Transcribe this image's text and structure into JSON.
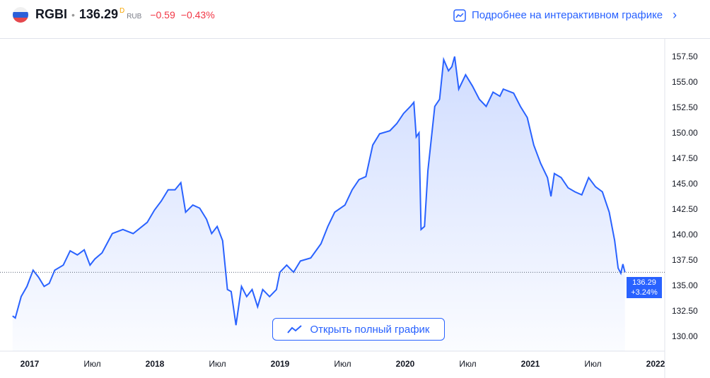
{
  "header": {
    "symbol": "RGBI",
    "separator": "•",
    "price": "136.29",
    "price_flag": "D",
    "currency": "RUB",
    "change": "−0.59",
    "change_percent": "−0.43%",
    "flag_icon": "russia-flag-icon",
    "more_link": "Подробнее на интерактивном графике"
  },
  "open_button": "Открыть полный график",
  "last_label": {
    "price": "136.29",
    "change": "+3.24%"
  },
  "colors": {
    "line": "#2962ff",
    "negative": "#f23645",
    "accent": "#2962ff"
  },
  "chart_data": {
    "type": "area",
    "x_ticks": [
      "2017",
      "Июл",
      "2018",
      "Июл",
      "2019",
      "Июл",
      "2020",
      "Июл",
      "2021",
      "Июл",
      "2022"
    ],
    "y_ticks": [
      "130.00",
      "132.50",
      "135.00",
      "137.50",
      "140.00",
      "142.50",
      "145.00",
      "147.50",
      "150.00",
      "152.50",
      "155.00",
      "157.50"
    ],
    "ylim": [
      129.4,
      159.2
    ],
    "xlim": [
      "2016-11-01",
      "2022-02-10"
    ],
    "grid": false,
    "last_value": 136.29,
    "points": [
      [
        "2016-11-12",
        132.0
      ],
      [
        "2016-11-20",
        131.8
      ],
      [
        "2016-12-07",
        133.9
      ],
      [
        "2016-12-24",
        134.9
      ],
      [
        "2017-01-11",
        136.5
      ],
      [
        "2017-01-27",
        135.8
      ],
      [
        "2017-02-12",
        134.9
      ],
      [
        "2017-02-27",
        135.2
      ],
      [
        "2017-03-15",
        136.5
      ],
      [
        "2017-04-09",
        137.0
      ],
      [
        "2017-04-29",
        138.4
      ],
      [
        "2017-05-20",
        138.0
      ],
      [
        "2017-06-09",
        138.5
      ],
      [
        "2017-06-26",
        137.0
      ],
      [
        "2017-07-10",
        137.6
      ],
      [
        "2017-07-31",
        138.2
      ],
      [
        "2017-08-30",
        140.1
      ],
      [
        "2017-09-30",
        140.5
      ],
      [
        "2017-10-30",
        140.1
      ],
      [
        "2017-12-10",
        141.2
      ],
      [
        "2017-12-31",
        142.4
      ],
      [
        "2018-01-20",
        143.3
      ],
      [
        "2018-02-09",
        144.4
      ],
      [
        "2018-03-01",
        144.4
      ],
      [
        "2018-03-18",
        145.1
      ],
      [
        "2018-04-01",
        142.2
      ],
      [
        "2018-04-22",
        142.9
      ],
      [
        "2018-05-12",
        142.6
      ],
      [
        "2018-06-01",
        141.5
      ],
      [
        "2018-06-16",
        140.1
      ],
      [
        "2018-07-02",
        140.8
      ],
      [
        "2018-07-18",
        139.4
      ],
      [
        "2018-08-01",
        134.6
      ],
      [
        "2018-08-12",
        134.4
      ],
      [
        "2018-08-26",
        131.1
      ],
      [
        "2018-09-11",
        134.9
      ],
      [
        "2018-09-26",
        133.9
      ],
      [
        "2018-10-12",
        134.6
      ],
      [
        "2018-10-28",
        132.9
      ],
      [
        "2018-11-12",
        134.6
      ],
      [
        "2018-12-02",
        133.9
      ],
      [
        "2018-12-22",
        134.6
      ],
      [
        "2019-01-01",
        136.3
      ],
      [
        "2019-01-21",
        137.0
      ],
      [
        "2019-02-10",
        136.3
      ],
      [
        "2019-03-02",
        137.4
      ],
      [
        "2019-04-01",
        137.7
      ],
      [
        "2019-05-01",
        139.1
      ],
      [
        "2019-05-21",
        140.8
      ],
      [
        "2019-06-10",
        142.2
      ],
      [
        "2019-07-10",
        142.9
      ],
      [
        "2019-07-31",
        144.4
      ],
      [
        "2019-08-20",
        145.4
      ],
      [
        "2019-09-09",
        145.7
      ],
      [
        "2019-09-29",
        148.8
      ],
      [
        "2019-10-19",
        149.9
      ],
      [
        "2019-11-18",
        150.2
      ],
      [
        "2019-12-08",
        150.9
      ],
      [
        "2019-12-28",
        151.9
      ],
      [
        "2020-01-17",
        152.6
      ],
      [
        "2020-01-27",
        153.0
      ],
      [
        "2020-02-03",
        149.6
      ],
      [
        "2020-02-11",
        150.0
      ],
      [
        "2020-02-17",
        140.5
      ],
      [
        "2020-02-27",
        140.8
      ],
      [
        "2020-03-08",
        146.3
      ],
      [
        "2020-03-28",
        152.6
      ],
      [
        "2020-04-11",
        153.3
      ],
      [
        "2020-04-23",
        157.2
      ],
      [
        "2020-05-07",
        156.1
      ],
      [
        "2020-05-17",
        156.5
      ],
      [
        "2020-05-25",
        157.5
      ],
      [
        "2020-06-06",
        154.3
      ],
      [
        "2020-06-26",
        155.7
      ],
      [
        "2020-07-16",
        154.6
      ],
      [
        "2020-08-05",
        153.3
      ],
      [
        "2020-08-25",
        152.6
      ],
      [
        "2020-09-14",
        154.0
      ],
      [
        "2020-10-04",
        153.6
      ],
      [
        "2020-10-14",
        154.3
      ],
      [
        "2020-11-13",
        153.9
      ],
      [
        "2020-12-03",
        152.6
      ],
      [
        "2020-12-23",
        151.5
      ],
      [
        "2021-01-11",
        148.8
      ],
      [
        "2021-01-31",
        147.0
      ],
      [
        "2021-02-20",
        145.6
      ],
      [
        "2021-03-02",
        143.75
      ],
      [
        "2021-03-12",
        146.0
      ],
      [
        "2021-04-01",
        145.6
      ],
      [
        "2021-04-21",
        144.6
      ],
      [
        "2021-05-11",
        144.2
      ],
      [
        "2021-05-31",
        143.9
      ],
      [
        "2021-06-20",
        145.6
      ],
      [
        "2021-07-10",
        144.7
      ],
      [
        "2021-07-30",
        144.2
      ],
      [
        "2021-08-19",
        142.2
      ],
      [
        "2021-09-04",
        139.4
      ],
      [
        "2021-09-14",
        136.7
      ],
      [
        "2021-09-22",
        136.2
      ],
      [
        "2021-09-28",
        137.1
      ],
      [
        "2021-10-04",
        136.29
      ]
    ]
  }
}
